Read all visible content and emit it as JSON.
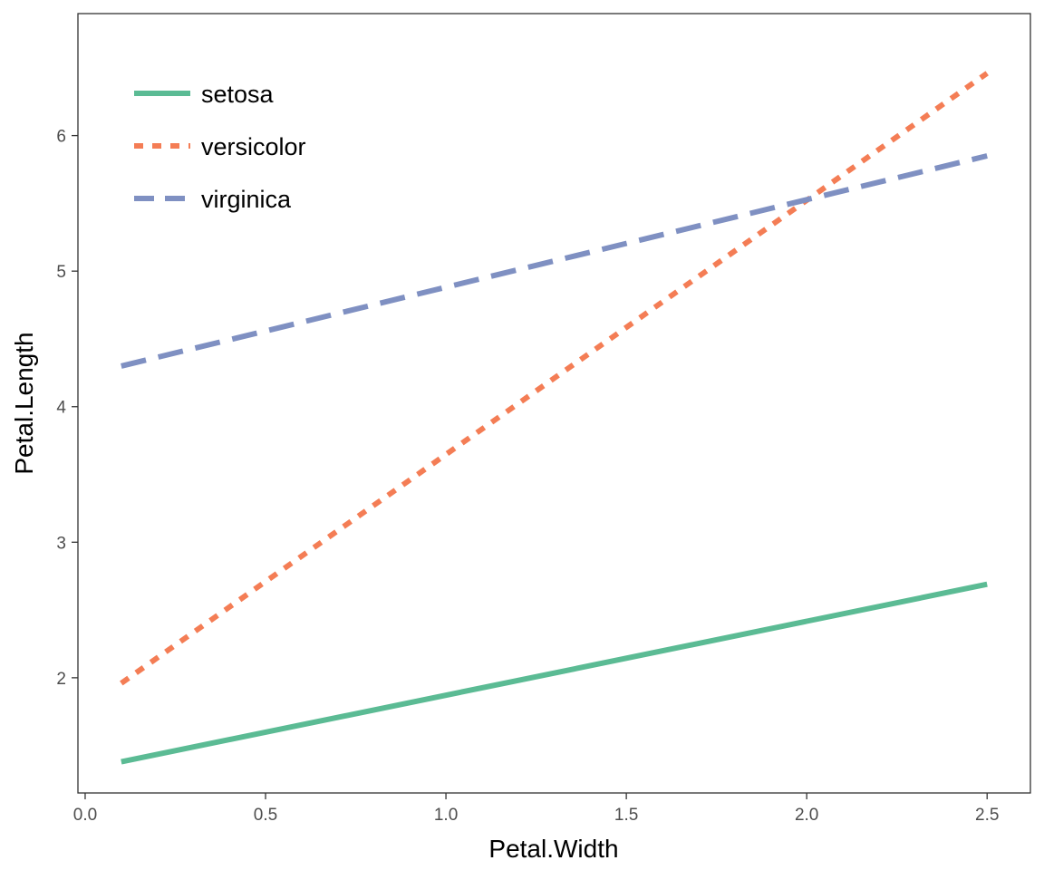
{
  "chart_data": {
    "type": "line",
    "title": "",
    "xlabel": "Petal.Width",
    "ylabel": "Petal.Length",
    "xlim": [
      -0.02,
      2.62
    ],
    "ylim": [
      1.15,
      6.9
    ],
    "x_ticks": [
      0,
      0.5,
      1,
      1.5,
      2,
      2.5
    ],
    "x_tick_labels": [
      "0.0",
      "0.5",
      "1.0",
      "1.5",
      "2.0",
      "2.5"
    ],
    "y_ticks": [
      2,
      3,
      4,
      5,
      6
    ],
    "y_tick_labels": [
      "2",
      "3",
      "4",
      "5",
      "6"
    ],
    "grid": false,
    "legend_position": "top-left",
    "series": [
      {
        "name": "setosa",
        "color": "#5bbb94",
        "linetype": "solid",
        "x": [
          0.1,
          2.5
        ],
        "y": [
          1.38,
          2.69
        ]
      },
      {
        "name": "versicolor",
        "color": "#f47d55",
        "linetype": "dotted",
        "x": [
          0.1,
          2.5
        ],
        "y": [
          1.96,
          6.46
        ]
      },
      {
        "name": "virginica",
        "color": "#7f90c2",
        "linetype": "dashed",
        "x": [
          0.1,
          2.5
        ],
        "y": [
          4.3,
          5.85
        ]
      }
    ]
  }
}
